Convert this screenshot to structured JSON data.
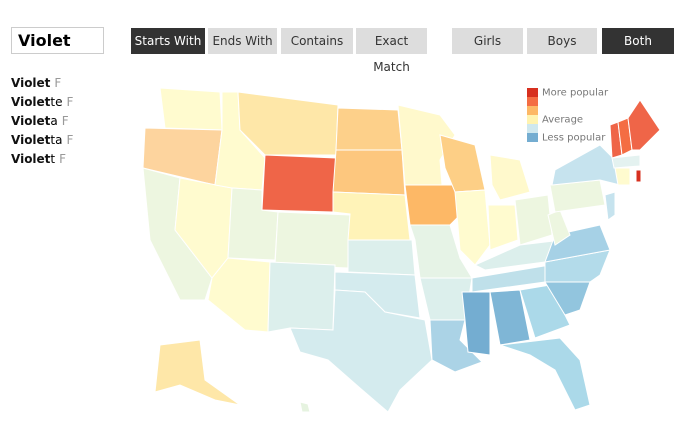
{
  "search": {
    "value": "Violet"
  },
  "match_buttons": [
    "Starts With",
    "Ends With",
    "Contains",
    "Exact Match"
  ],
  "gender_buttons": [
    "Girls",
    "Boys",
    "Both"
  ],
  "names": [
    {
      "prefix": "Violet",
      "sex": "F"
    },
    {
      "prefix": "Violet",
      "suffix": "te",
      "sex": "F"
    },
    {
      "prefix": "Violet",
      "suffix": "a",
      "sex": "F"
    },
    {
      "prefix": "Violet",
      "suffix": "ta",
      "sex": "F"
    },
    {
      "prefix": "Violet",
      "suffix": "t",
      "sex": "F"
    }
  ],
  "legend": [
    {
      "color": "#d7301f",
      "label": "More popular"
    },
    {
      "color": "#f46d43"
    },
    {
      "color": "#fdb866"
    },
    {
      "color": "#fff3b0",
      "label": "Average"
    },
    {
      "color": "#cfe8ef"
    },
    {
      "color": "#74add1",
      "label": "Less popular"
    }
  ]
}
